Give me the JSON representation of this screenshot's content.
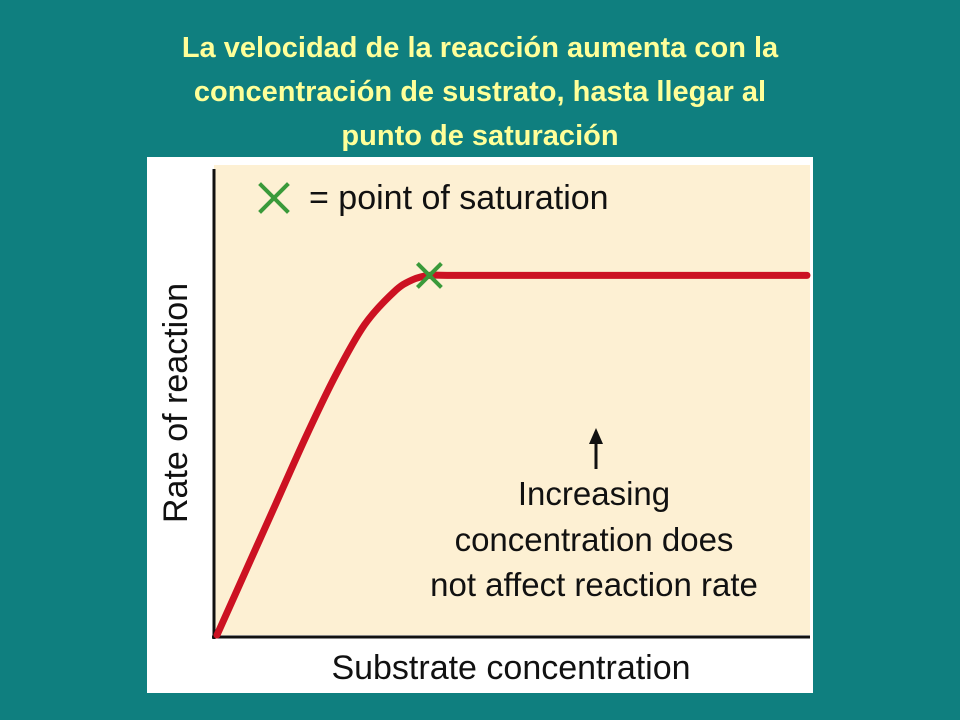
{
  "slide": {
    "title_lines": [
      "La velocidad de la reacción aumenta con la",
      "concentración de sustrato, hasta llegar al",
      "punto de saturación"
    ]
  },
  "colors": {
    "background": "#0f7f7f",
    "title": "#ffff99",
    "plot_area": "#fdf0d3",
    "curve": "#cc1122",
    "marker": "#3a9a3a"
  },
  "chart_data": {
    "type": "line",
    "title": "",
    "xlabel": "Substrate concentration",
    "ylabel": "Rate of reaction",
    "grid": false,
    "legend": {
      "symbol": "green-x",
      "text": "= point of saturation",
      "placement": "top-left"
    },
    "annotation": {
      "lines": [
        "Increasing",
        "concentration does",
        "not affect reaction rate"
      ],
      "pointer": "arrow pointing up to the plateau"
    },
    "xlim": [
      0,
      100
    ],
    "ylim": [
      0,
      100
    ],
    "series": [
      {
        "x": [
          0,
          5,
          10,
          15,
          20,
          25,
          30,
          33,
          36,
          40,
          50,
          60,
          70,
          80,
          90,
          100
        ],
        "y": [
          0,
          14,
          28,
          42,
          55,
          66,
          73,
          75.5,
          76.5,
          76.5,
          76.5,
          76.5,
          76.5,
          76.5,
          76.5,
          76.5
        ]
      }
    ],
    "saturation_point": {
      "x": 36,
      "y": 76.5
    }
  }
}
